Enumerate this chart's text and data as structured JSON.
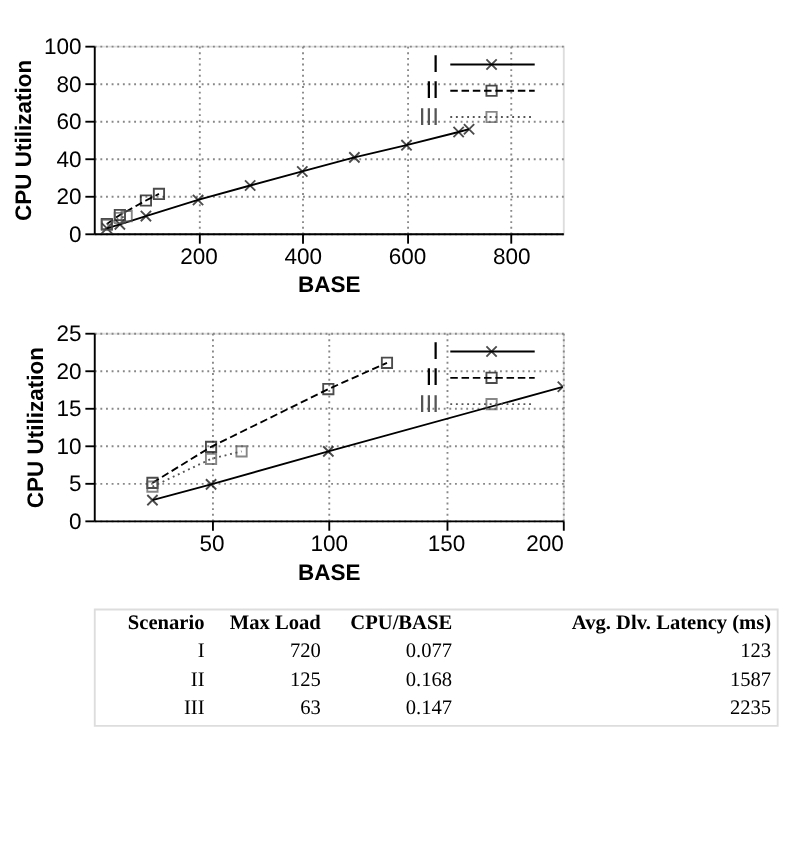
{
  "chart_data": [
    {
      "type": "line",
      "xlabel": "BASE",
      "ylabel": "CPU Utilization",
      "xlim": [
        0,
        900
      ],
      "xticks": [
        200,
        400,
        600,
        800
      ],
      "ylim": [
        0,
        100
      ],
      "yticks": [
        0,
        20,
        40,
        60,
        80,
        100
      ],
      "grid": true,
      "legend": "top right",
      "series": [
        {
          "name": "I",
          "color": "#000000",
          "marker": "cross",
          "line_style": "solid",
          "x": [
            25,
            50,
            100,
            200,
            300,
            400,
            500,
            600,
            700,
            720
          ],
          "values": [
            2.7,
            4.8,
            9.2,
            17.8,
            25.5,
            33,
            40.5,
            47,
            54,
            55.5
          ]
        },
        {
          "name": "II",
          "color": "#000000",
          "marker": "square",
          "line_style": "dashed",
          "x": [
            25,
            50,
            100,
            125
          ],
          "values": [
            5,
            9.8,
            17.5,
            21
          ]
        },
        {
          "name": "III",
          "color": "#555555",
          "marker": "square",
          "line_style": "dotted",
          "x": [
            25,
            50,
            63
          ],
          "values": [
            4.5,
            8.2,
            9.2
          ]
        }
      ]
    },
    {
      "type": "line",
      "xlabel": "BASE",
      "ylabel": "CPU Utilization",
      "xlim": [
        0,
        200
      ],
      "xticks": [
        50,
        100,
        150,
        200
      ],
      "ylim": [
        0,
        25
      ],
      "yticks": [
        0,
        5,
        10,
        15,
        20,
        25
      ],
      "grid": true,
      "legend": "top right",
      "series": [
        {
          "name": "I",
          "color": "#000000",
          "marker": "cross",
          "line_style": "solid",
          "x": [
            25,
            50,
            100,
            200
          ],
          "values": [
            2.7,
            4.8,
            9.2,
            17.8
          ]
        },
        {
          "name": "II",
          "color": "#000000",
          "marker": "square",
          "line_style": "dashed",
          "x": [
            25,
            50,
            100,
            125
          ],
          "values": [
            5,
            9.8,
            17.5,
            21
          ]
        },
        {
          "name": "III",
          "color": "#555555",
          "marker": "square",
          "line_style": "dotted",
          "x": [
            25,
            50,
            63
          ],
          "values": [
            4.5,
            8.2,
            9.2
          ]
        }
      ]
    },
    {
      "type": "other",
      "annotations": [
        "Scenario",
        "Max Load",
        "CPU/BASE",
        "Avg. Dlv. Latency (ms)",
        "I",
        "720",
        "0.077",
        "123",
        "II",
        "125",
        "0.168",
        "1587",
        "III",
        "63",
        "0.147",
        "2235"
      ]
    }
  ]
}
